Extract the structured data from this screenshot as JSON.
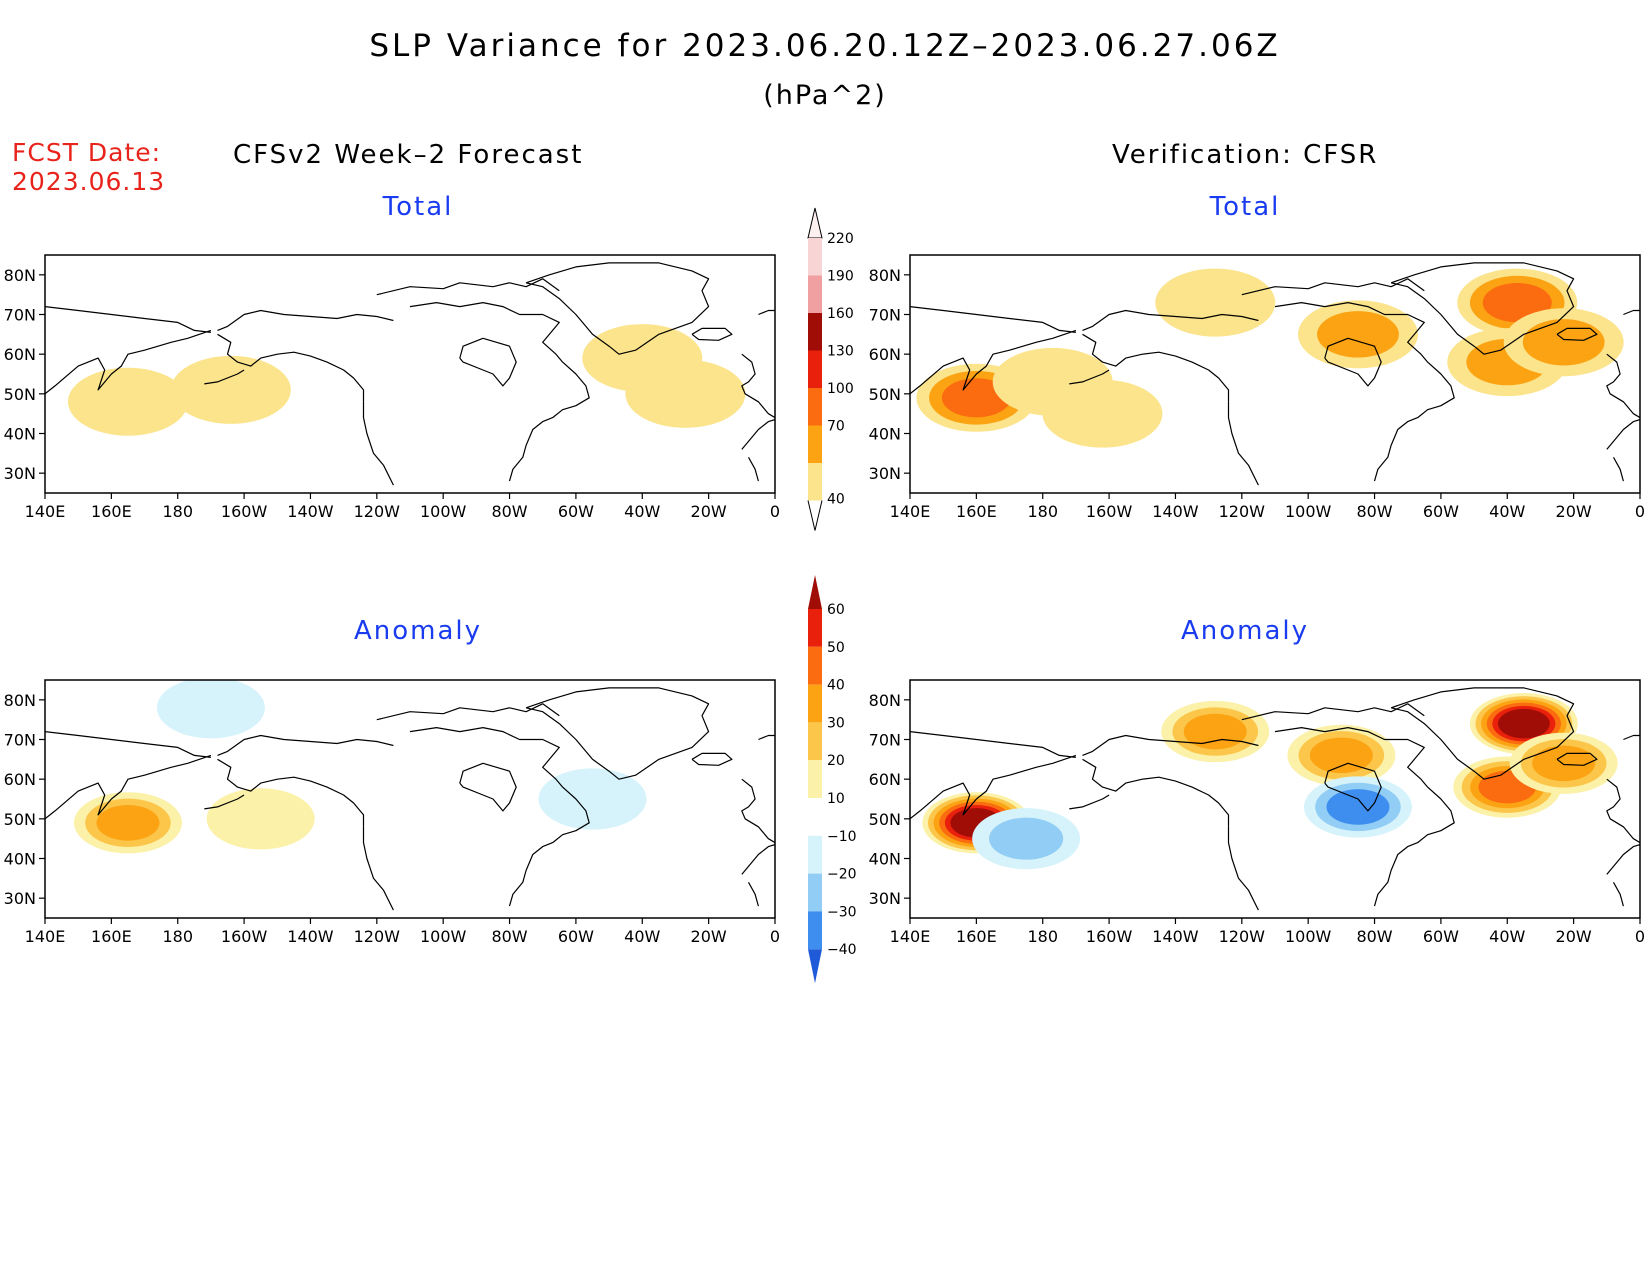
{
  "title": "SLP Variance for 2023.06.20.12Z–2023.06.27.06Z",
  "units": "(hPa^2)",
  "fcst_date_label": "FCST Date:",
  "fcst_date_value": "2023.06.13",
  "left_column_title": "CFSv2 Week–2 Forecast",
  "right_column_title": "Verification: CFSR",
  "panels": {
    "forecast_total": {
      "label": "Total"
    },
    "verif_total": {
      "label": "Total"
    },
    "forecast_anomaly": {
      "label": "Anomaly"
    },
    "verif_anomaly": {
      "label": "Anomaly"
    }
  },
  "axes": {
    "lon_labels": [
      "140E",
      "160E",
      "180",
      "160W",
      "140W",
      "120W",
      "100W",
      "80W",
      "60W",
      "40W",
      "20W",
      "0"
    ],
    "lat_labels": [
      "80N",
      "70N",
      "60N",
      "50N",
      "40N",
      "30N"
    ]
  },
  "total_colorbar": {
    "levels": [
      "40",
      "70",
      "100",
      "130",
      "160",
      "190",
      "220"
    ],
    "colors": [
      "#fbe48c",
      "#fba312",
      "#fb6b10",
      "#e8200c",
      "#a00d06",
      "#f0a0a0",
      "#f8d4d4",
      "#fdf0f0"
    ]
  },
  "anomaly_colorbar": {
    "levels": [
      "60",
      "50",
      "40",
      "30",
      "20",
      "10",
      "−10",
      "−20",
      "−30",
      "−40"
    ],
    "colors": [
      "#a00d06",
      "#e8200c",
      "#fb6b10",
      "#fba312",
      "#fbc64a",
      "#fbf1a8",
      "#ffffff",
      "#d6f3fb",
      "#92cdf5",
      "#3e8ef0",
      "#1f5bd8"
    ]
  },
  "chart_data": [
    {
      "type": "heatmap",
      "panel": "CFSv2 Week-2 Forecast - Total",
      "lon_range": [
        140,
        360
      ],
      "lat_range": [
        25,
        85
      ],
      "features": [
        {
          "lon": 165,
          "lat": 48,
          "value": 55
        },
        {
          "lon": 196,
          "lat": 51,
          "value": 50
        },
        {
          "lon": 320,
          "lat": 59,
          "value": 42
        },
        {
          "lon": 333,
          "lat": 50,
          "value": 42
        }
      ]
    },
    {
      "type": "heatmap",
      "panel": "Verification: CFSR - Total",
      "lon_range": [
        140,
        360
      ],
      "lat_range": [
        25,
        85
      ],
      "features": [
        {
          "lon": 160,
          "lat": 49,
          "value": 110
        },
        {
          "lon": 183,
          "lat": 53,
          "value": 50
        },
        {
          "lon": 198,
          "lat": 45,
          "value": 55
        },
        {
          "lon": 232,
          "lat": 73,
          "value": 55
        },
        {
          "lon": 275,
          "lat": 65,
          "value": 75
        },
        {
          "lon": 323,
          "lat": 73,
          "value": 110
        },
        {
          "lon": 320,
          "lat": 58,
          "value": 85
        },
        {
          "lon": 337,
          "lat": 63,
          "value": 70
        }
      ]
    },
    {
      "type": "heatmap",
      "panel": "CFSv2 Week-2 Forecast - Anomaly",
      "lon_range": [
        140,
        360
      ],
      "lat_range": [
        25,
        85
      ],
      "features": [
        {
          "lon": 165,
          "lat": 49,
          "value": 30
        },
        {
          "lon": 205,
          "lat": 50,
          "value": 15
        },
        {
          "lon": 190,
          "lat": 78,
          "value": -12
        },
        {
          "lon": 305,
          "lat": 55,
          "value": -12
        }
      ]
    },
    {
      "type": "heatmap",
      "panel": "Verification: CFSR - Anomaly",
      "lon_range": [
        140,
        360
      ],
      "lat_range": [
        25,
        85
      ],
      "features": [
        {
          "lon": 160,
          "lat": 49,
          "value": 60
        },
        {
          "lon": 232,
          "lat": 72,
          "value": 35
        },
        {
          "lon": 270,
          "lat": 66,
          "value": 30
        },
        {
          "lon": 275,
          "lat": 53,
          "value": -38
        },
        {
          "lon": 325,
          "lat": 74,
          "value": 60
        },
        {
          "lon": 320,
          "lat": 58,
          "value": 45
        },
        {
          "lon": 337,
          "lat": 64,
          "value": 30
        },
        {
          "lon": 175,
          "lat": 45,
          "value": -20
        }
      ]
    }
  ]
}
